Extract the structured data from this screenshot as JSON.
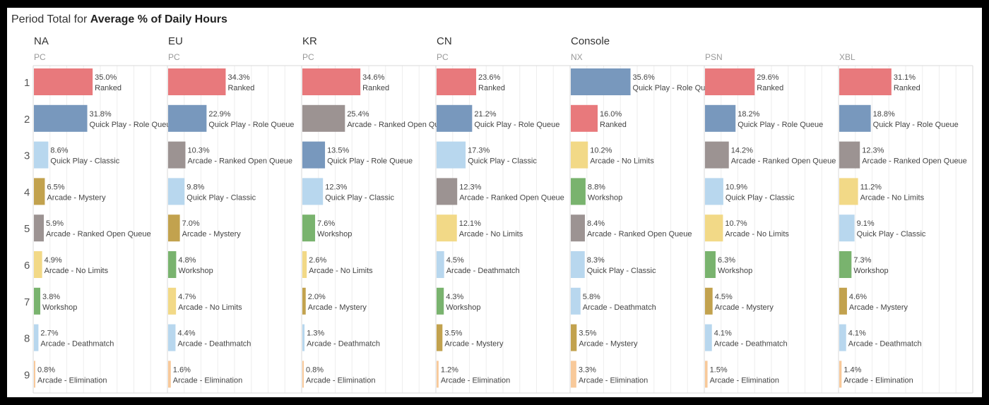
{
  "title": {
    "prefix": "Period Total for ",
    "bold": "Average % of Daily Hours"
  },
  "colors": {
    "Ranked": "#e8797c",
    "Quick Play - Role Queue": "#7898bd",
    "Arcade - Ranked Open Queue": "#9c9392",
    "Quick Play - Classic": "#b8d7ee",
    "Arcade - Mystery": "#c2a24e",
    "Workshop": "#79b36e",
    "Arcade - No Limits": "#f2d987",
    "Arcade - Deathmatch": "#b8d7ee",
    "Arcade - Elimination": "#f8c99a"
  },
  "chart_data": {
    "type": "bar",
    "orientation": "horizontal",
    "title": "Period Total for Average % of Daily Hours",
    "row_labels": [
      "1",
      "2",
      "3",
      "4",
      "5",
      "6",
      "7",
      "8",
      "9"
    ],
    "xlim": [
      0,
      80
    ],
    "panels": [
      {
        "group": "NA",
        "platform": "PC",
        "bars": [
          {
            "value": 35.0,
            "label": "35.0%",
            "mode": "Ranked"
          },
          {
            "value": 31.8,
            "label": "31.8%",
            "mode": "Quick Play - Role Queue"
          },
          {
            "value": 8.6,
            "label": "8.6%",
            "mode": "Quick Play - Classic"
          },
          {
            "value": 6.5,
            "label": "6.5%",
            "mode": "Arcade - Mystery"
          },
          {
            "value": 5.9,
            "label": "5.9%",
            "mode": "Arcade - Ranked Open Queue"
          },
          {
            "value": 4.9,
            "label": "4.9%",
            "mode": "Arcade - No Limits"
          },
          {
            "value": 3.8,
            "label": "3.8%",
            "mode": "Workshop"
          },
          {
            "value": 2.7,
            "label": "2.7%",
            "mode": "Arcade - Deathmatch"
          },
          {
            "value": 0.8,
            "label": "0.8%",
            "mode": "Arcade - Elimination"
          }
        ]
      },
      {
        "group": "EU",
        "platform": "PC",
        "bars": [
          {
            "value": 34.3,
            "label": "34.3%",
            "mode": "Ranked"
          },
          {
            "value": 22.9,
            "label": "22.9%",
            "mode": "Quick Play - Role Queue"
          },
          {
            "value": 10.3,
            "label": "10.3%",
            "mode": "Arcade - Ranked Open Queue"
          },
          {
            "value": 9.8,
            "label": "9.8%",
            "mode": "Quick Play - Classic"
          },
          {
            "value": 7.0,
            "label": "7.0%",
            "mode": "Arcade - Mystery"
          },
          {
            "value": 4.8,
            "label": "4.8%",
            "mode": "Workshop"
          },
          {
            "value": 4.7,
            "label": "4.7%",
            "mode": "Arcade - No Limits"
          },
          {
            "value": 4.4,
            "label": "4.4%",
            "mode": "Arcade - Deathmatch"
          },
          {
            "value": 1.6,
            "label": "1.6%",
            "mode": "Arcade - Elimination"
          }
        ]
      },
      {
        "group": "KR",
        "platform": "PC",
        "bars": [
          {
            "value": 34.6,
            "label": "34.6%",
            "mode": "Ranked"
          },
          {
            "value": 25.4,
            "label": "25.4%",
            "mode": "Arcade - Ranked Open Queue"
          },
          {
            "value": 13.5,
            "label": "13.5%",
            "mode": "Quick Play - Role Queue"
          },
          {
            "value": 12.3,
            "label": "12.3%",
            "mode": "Quick Play - Classic"
          },
          {
            "value": 7.6,
            "label": "7.6%",
            "mode": "Workshop"
          },
          {
            "value": 2.6,
            "label": "2.6%",
            "mode": "Arcade - No Limits"
          },
          {
            "value": 2.0,
            "label": "2.0%",
            "mode": "Arcade - Mystery"
          },
          {
            "value": 1.3,
            "label": "1.3%",
            "mode": "Arcade - Deathmatch"
          },
          {
            "value": 0.8,
            "label": "0.8%",
            "mode": "Arcade - Elimination"
          }
        ]
      },
      {
        "group": "CN",
        "platform": "PC",
        "bars": [
          {
            "value": 23.6,
            "label": "23.6%",
            "mode": "Ranked"
          },
          {
            "value": 21.2,
            "label": "21.2%",
            "mode": "Quick Play - Role Queue"
          },
          {
            "value": 17.3,
            "label": "17.3%",
            "mode": "Quick Play - Classic"
          },
          {
            "value": 12.3,
            "label": "12.3%",
            "mode": "Arcade - Ranked Open Queue"
          },
          {
            "value": 12.1,
            "label": "12.1%",
            "mode": "Arcade - No Limits"
          },
          {
            "value": 4.5,
            "label": "4.5%",
            "mode": "Arcade - Deathmatch"
          },
          {
            "value": 4.3,
            "label": "4.3%",
            "mode": "Workshop"
          },
          {
            "value": 3.5,
            "label": "3.5%",
            "mode": "Arcade - Mystery"
          },
          {
            "value": 1.2,
            "label": "1.2%",
            "mode": "Arcade - Elimination"
          }
        ]
      },
      {
        "group": "Console",
        "platform": "NX",
        "bars": [
          {
            "value": 35.6,
            "label": "35.6%",
            "mode": "Quick Play - Role Queue"
          },
          {
            "value": 16.0,
            "label": "16.0%",
            "mode": "Ranked"
          },
          {
            "value": 10.2,
            "label": "10.2%",
            "mode": "Arcade - No Limits"
          },
          {
            "value": 8.8,
            "label": "8.8%",
            "mode": "Workshop"
          },
          {
            "value": 8.4,
            "label": "8.4%",
            "mode": "Arcade - Ranked Open Queue"
          },
          {
            "value": 8.3,
            "label": "8.3%",
            "mode": "Quick Play - Classic"
          },
          {
            "value": 5.8,
            "label": "5.8%",
            "mode": "Arcade - Deathmatch"
          },
          {
            "value": 3.5,
            "label": "3.5%",
            "mode": "Arcade - Mystery"
          },
          {
            "value": 3.3,
            "label": "3.3%",
            "mode": "Arcade - Elimination"
          }
        ]
      },
      {
        "group": "",
        "platform": "PSN",
        "bars": [
          {
            "value": 29.6,
            "label": "29.6%",
            "mode": "Ranked"
          },
          {
            "value": 18.2,
            "label": "18.2%",
            "mode": "Quick Play - Role Queue"
          },
          {
            "value": 14.2,
            "label": "14.2%",
            "mode": "Arcade - Ranked Open Queue"
          },
          {
            "value": 10.9,
            "label": "10.9%",
            "mode": "Quick Play - Classic"
          },
          {
            "value": 10.7,
            "label": "10.7%",
            "mode": "Arcade - No Limits"
          },
          {
            "value": 6.3,
            "label": "6.3%",
            "mode": "Workshop"
          },
          {
            "value": 4.5,
            "label": "4.5%",
            "mode": "Arcade - Mystery"
          },
          {
            "value": 4.1,
            "label": "4.1%",
            "mode": "Arcade - Deathmatch"
          },
          {
            "value": 1.5,
            "label": "1.5%",
            "mode": "Arcade - Elimination"
          }
        ]
      },
      {
        "group": "",
        "platform": "XBL",
        "bars": [
          {
            "value": 31.1,
            "label": "31.1%",
            "mode": "Ranked"
          },
          {
            "value": 18.8,
            "label": "18.8%",
            "mode": "Quick Play - Role Queue"
          },
          {
            "value": 12.3,
            "label": "12.3%",
            "mode": "Arcade - Ranked Open Queue"
          },
          {
            "value": 11.2,
            "label": "11.2%",
            "mode": "Arcade - No Limits"
          },
          {
            "value": 9.1,
            "label": "9.1%",
            "mode": "Quick Play - Classic"
          },
          {
            "value": 7.3,
            "label": "7.3%",
            "mode": "Workshop"
          },
          {
            "value": 4.6,
            "label": "4.6%",
            "mode": "Arcade - Mystery"
          },
          {
            "value": 4.1,
            "label": "4.1%",
            "mode": "Arcade - Deathmatch"
          },
          {
            "value": 1.4,
            "label": "1.4%",
            "mode": "Arcade - Elimination"
          }
        ]
      }
    ]
  }
}
